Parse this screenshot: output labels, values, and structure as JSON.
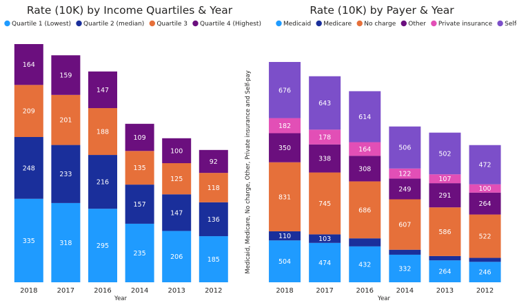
{
  "chart_data": [
    {
      "type": "bar",
      "stacked": true,
      "title": "Rate (10K) by Income Quartiles & Year",
      "xlabel": "Year",
      "ylabel": "",
      "categories": [
        "2018",
        "2017",
        "2016",
        "2014",
        "2013",
        "2012"
      ],
      "legend_position": "top-left",
      "series": [
        {
          "name": "Quartile 1 (Lowest)",
          "color": "#1f9bff",
          "values": [
            335,
            318,
            295,
            235,
            206,
            185
          ]
        },
        {
          "name": "Quartile 2 (median)",
          "color": "#1a2f9b",
          "values": [
            248,
            233,
            216,
            157,
            147,
            136
          ]
        },
        {
          "name": "Quartile 3",
          "color": "#e6703a",
          "values": [
            209,
            201,
            188,
            135,
            125,
            118
          ]
        },
        {
          "name": "Quartile 4 (Highest)",
          "color": "#6b0f7e",
          "values": [
            164,
            159,
            147,
            109,
            100,
            92
          ]
        }
      ]
    },
    {
      "type": "bar",
      "stacked": true,
      "title": "Rate (10K) by Payer & Year",
      "xlabel": "Year",
      "ylabel": "Medicaid, Medicare, No charge, Other, Private insurance and Self-pay",
      "categories": [
        "2018",
        "2017",
        "2016",
        "2014",
        "2013",
        "2012"
      ],
      "legend_position": "top-left",
      "series": [
        {
          "name": "Medicaid",
          "color": "#1f9bff",
          "values": [
            504,
            474,
            432,
            332,
            264,
            246
          ],
          "labels": [
            "504",
            "474",
            "432",
            "332",
            "264",
            "246"
          ]
        },
        {
          "name": "Medicare",
          "color": "#1a2f9b",
          "values": [
            110,
            103,
            97,
            60,
            52,
            48
          ],
          "labels": [
            "110",
            "103",
            "97",
            "",
            "",
            ""
          ]
        },
        {
          "name": "No charge",
          "color": "#e6703a",
          "values": [
            831,
            745,
            686,
            607,
            586,
            522
          ],
          "labels": [
            "831",
            "745",
            "686",
            "607",
            "586",
            "522"
          ]
        },
        {
          "name": "Other",
          "color": "#6b0f7e",
          "values": [
            350,
            338,
            308,
            249,
            291,
            264
          ],
          "labels": [
            "350",
            "338",
            "308",
            "249",
            "291",
            "264"
          ]
        },
        {
          "name": "Private insurance",
          "color": "#e24fb6",
          "values": [
            182,
            178,
            164,
            122,
            107,
            100
          ],
          "labels": [
            "182",
            "178",
            "164",
            "122",
            "107",
            "100"
          ]
        },
        {
          "name": "Self-pay",
          "color": "#7c4fc9",
          "values": [
            676,
            643,
            614,
            506,
            502,
            472
          ],
          "labels": [
            "676",
            "643",
            "614",
            "506",
            "502",
            "472"
          ]
        }
      ]
    }
  ]
}
